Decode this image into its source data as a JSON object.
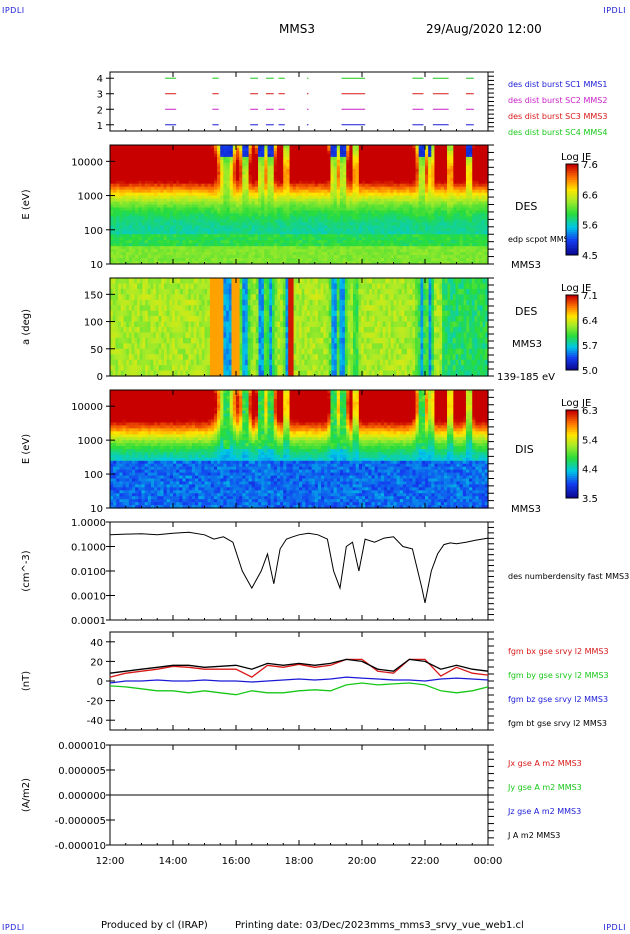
{
  "header": {
    "corner_tl": "IPDLI",
    "corner_tr": "IPDLI",
    "corner_bl": "IPDLI",
    "corner_br": "IPDLI",
    "spacecraft": "MMS3",
    "datetime": "29/Aug/2020 12:00"
  },
  "footer": {
    "produced_by": "Produced by cl (IRAP)",
    "printing_date": "Printing date: 03/Dec/2023",
    "filename": "mms_mms3_srvy_vue_web1.cl"
  },
  "x_axis": {
    "ticks": [
      "12:00",
      "14:00",
      "16:00",
      "18:00",
      "20:00",
      "22:00",
      "00:00"
    ],
    "hours": [
      0,
      2,
      4,
      6,
      8,
      10,
      12
    ]
  },
  "colors": {
    "blue": "#1a1ad6",
    "magenta": "#c81ec8",
    "red": "#d81818",
    "green": "#18c818",
    "black": "#000000"
  },
  "chart_data": [
    {
      "type": "line",
      "panel": "burst",
      "ylim": [
        0.6,
        4.4
      ],
      "yticks": [
        "1",
        "2",
        "3",
        "4"
      ],
      "legend": [
        {
          "label": "des dist burst SC1 MMS1",
          "color": "#1a1ad6"
        },
        {
          "label": "des dist burst SC2 MMS2",
          "color": "#c81ec8"
        },
        {
          "label": "des dist burst SC3 MMS3",
          "color": "#d81818"
        },
        {
          "label": "des dist burst SC4 MMS4",
          "color": "#18c818"
        }
      ],
      "intervals_hours": [
        [
          1.75,
          2.1
        ],
        [
          3.25,
          3.45
        ],
        [
          4.45,
          4.7
        ],
        [
          4.95,
          5.2
        ],
        [
          5.35,
          5.55
        ],
        [
          6.25,
          6.3
        ],
        [
          7.35,
          8.1
        ],
        [
          9.6,
          9.95
        ],
        [
          10.25,
          10.75
        ],
        [
          11.3,
          11.55
        ]
      ]
    },
    {
      "type": "heatmap",
      "panel": "des_energy",
      "ylabel": "E (eV)",
      "yscale": "log",
      "ylim": [
        10,
        30000
      ],
      "yticks": [
        "10",
        "100",
        "1000",
        "10000"
      ],
      "side_labels": [
        "DES",
        "edp scpot MMS3",
        "MMS3"
      ],
      "colorbar": {
        "title": "Log JE",
        "ticks": [
          "7.6",
          "6.6",
          "5.6",
          "4.5"
        ],
        "range": [
          4.5,
          7.6
        ]
      }
    },
    {
      "type": "heatmap",
      "panel": "des_pitch",
      "ylabel": "a (deg)",
      "ylim": [
        0,
        180
      ],
      "yticks": [
        "0",
        "50",
        "100",
        "150"
      ],
      "side_labels": [
        "DES",
        "MMS3",
        "139-185 eV"
      ],
      "colorbar": {
        "title": "Log JE",
        "ticks": [
          "7.1",
          "6.4",
          "5.7",
          "5.0"
        ],
        "range": [
          5.0,
          7.1
        ]
      }
    },
    {
      "type": "heatmap",
      "panel": "dis_energy",
      "ylabel": "E (eV)",
      "yscale": "log",
      "ylim": [
        10,
        30000
      ],
      "yticks": [
        "10",
        "100",
        "1000",
        "10000"
      ],
      "side_labels": [
        "DIS",
        "MMS3"
      ],
      "colorbar": {
        "title": "Log JE",
        "ticks": [
          "6.3",
          "5.4",
          "4.4",
          "3.5"
        ],
        "range": [
          3.5,
          6.3
        ]
      }
    },
    {
      "type": "line",
      "panel": "density",
      "ylabel": "(cm^-3)",
      "yscale": "log",
      "ylim": [
        0.0001,
        1.0
      ],
      "yticks": [
        "1.0000",
        "0.1000",
        "0.0100",
        "0.0010",
        "0.0001"
      ],
      "legend": [
        {
          "label": "des numberdensity fast MMS3",
          "color": "#000000"
        }
      ],
      "series": [
        {
          "name": "des numberdensity fast MMS3",
          "x": [
            0,
            0.5,
            1,
            1.5,
            2,
            2.5,
            3,
            3.3,
            3.6,
            3.9,
            4.2,
            4.5,
            4.8,
            5.0,
            5.2,
            5.4,
            5.6,
            5.8,
            6.0,
            6.3,
            6.6,
            6.9,
            7.1,
            7.3,
            7.5,
            7.7,
            7.9,
            8.1,
            8.4,
            8.7,
            9.0,
            9.3,
            9.6,
            9.9,
            10.0,
            10.2,
            10.4,
            10.6,
            10.8,
            11.0,
            11.3,
            11.6,
            12.0
          ],
          "y": [
            0.3,
            0.32,
            0.33,
            0.3,
            0.35,
            0.38,
            0.3,
            0.2,
            0.25,
            0.15,
            0.01,
            0.002,
            0.01,
            0.05,
            0.003,
            0.08,
            0.2,
            0.25,
            0.3,
            0.35,
            0.3,
            0.2,
            0.01,
            0.002,
            0.1,
            0.15,
            0.01,
            0.2,
            0.15,
            0.22,
            0.25,
            0.1,
            0.08,
            0.002,
            0.0005,
            0.01,
            0.05,
            0.12,
            0.14,
            0.13,
            0.15,
            0.18,
            0.22
          ]
        }
      ]
    },
    {
      "type": "line",
      "panel": "fgm",
      "ylabel": "(nT)",
      "ylim": [
        -50,
        50
      ],
      "yticks": [
        "40",
        "20",
        "0",
        "-20",
        "-40"
      ],
      "legend": [
        {
          "label": "fgm bx gse srvy l2 MMS3",
          "color": "#d81818"
        },
        {
          "label": "fgm by gse srvy l2 MMS3",
          "color": "#18c818"
        },
        {
          "label": "fgm bz gse srvy l2 MMS3",
          "color": "#1a1ad6"
        },
        {
          "label": "fgm bt gse srvy l2 MMS3",
          "color": "#000000"
        }
      ],
      "x": [
        0,
        0.5,
        1,
        1.5,
        2,
        2.5,
        3,
        3.5,
        4,
        4.5,
        5,
        5.5,
        6,
        6.5,
        7,
        7.5,
        8,
        8.5,
        9,
        9.5,
        10,
        10.5,
        11,
        11.5,
        12
      ],
      "series": [
        {
          "name": "fgm bx gse srvy l2 MMS3",
          "values": [
            4,
            8,
            10,
            12,
            15,
            14,
            12,
            12,
            12,
            4,
            16,
            14,
            17,
            14,
            16,
            22,
            22,
            10,
            8,
            22,
            22,
            5,
            14,
            8,
            6
          ]
        },
        {
          "name": "fgm by gse srvy l2 MMS3",
          "values": [
            -5,
            -6,
            -8,
            -10,
            -10,
            -12,
            -10,
            -12,
            -14,
            -10,
            -12,
            -12,
            -10,
            -9,
            -10,
            -4,
            -2,
            -4,
            -3,
            -2,
            -4,
            -10,
            -12,
            -10,
            -6
          ]
        },
        {
          "name": "fgm bz gse srvy l2 MMS3",
          "values": [
            -2,
            0,
            0,
            1,
            0,
            0,
            1,
            0,
            0,
            -1,
            0,
            1,
            2,
            1,
            2,
            4,
            3,
            2,
            1,
            1,
            0,
            2,
            3,
            2,
            1
          ]
        },
        {
          "name": "fgm bt gse srvy l2 MMS3",
          "values": [
            8,
            10,
            12,
            14,
            16,
            16,
            14,
            15,
            16,
            12,
            18,
            16,
            18,
            16,
            18,
            22,
            20,
            12,
            10,
            22,
            20,
            12,
            16,
            12,
            10
          ]
        }
      ]
    },
    {
      "type": "line",
      "panel": "current",
      "ylabel": "(A/m2)",
      "ylim": [
        -1e-05,
        1e-05
      ],
      "yticks": [
        "0.000010",
        "0.000005",
        "0.000000",
        "-0.000005",
        "-0.000010"
      ],
      "legend": [
        {
          "label": "Jx gse A m2 MMS3",
          "color": "#d81818"
        },
        {
          "label": "Jy gse A m2 MMS3",
          "color": "#18c818"
        },
        {
          "label": "Jz gse A m2 MMS3",
          "color": "#1a1ad6"
        },
        {
          "label": "J A m2 MMS3",
          "color": "#000000"
        }
      ],
      "series": [
        {
          "name": "J A m2 MMS3",
          "x": [
            0,
            12
          ],
          "y": [
            0,
            0
          ]
        }
      ]
    }
  ]
}
